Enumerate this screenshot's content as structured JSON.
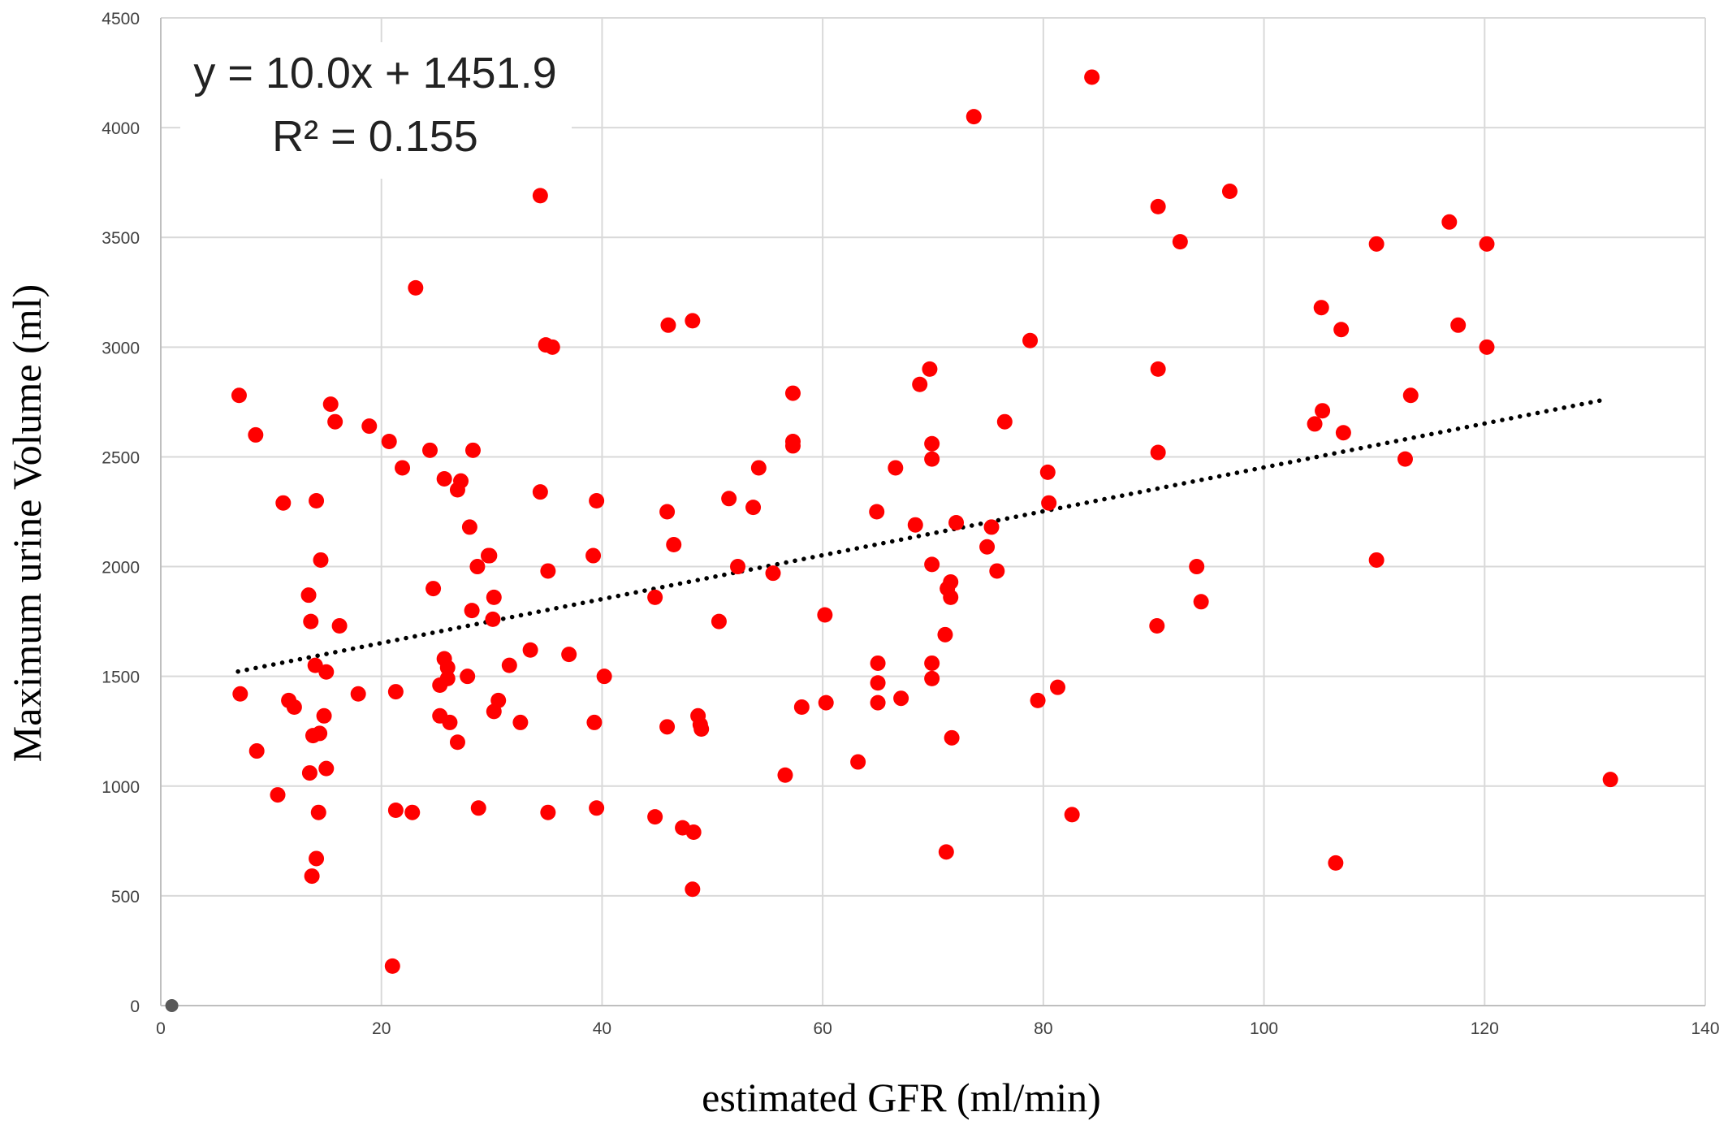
{
  "chart_data": {
    "type": "scatter",
    "xlabel": "estimated GFR (ml/min)",
    "ylabel": "Maximum urine Volume (ml)",
    "xlim": [
      0,
      140
    ],
    "ylim": [
      0,
      4500
    ],
    "x_ticks": [
      0,
      20,
      40,
      60,
      80,
      100,
      120,
      140
    ],
    "y_ticks": [
      0,
      500,
      1000,
      1500,
      2000,
      2500,
      3000,
      3500,
      4000,
      4500
    ],
    "grid": true,
    "equation": "y = 10.0x + 1451.9",
    "r_squared": "R² = 0.155",
    "trendline": {
      "slope": 10.0,
      "intercept": 1451.9,
      "x_range": [
        7,
        131
      ],
      "style": "dotted",
      "color": "#000000"
    },
    "marker_color": "#ff0000",
    "origin_marker": {
      "x": 1,
      "y": 0,
      "color": "#595959"
    },
    "series": [
      {
        "values": [
          [
            7.1,
            2780
          ],
          [
            8.6,
            2600
          ],
          [
            7.2,
            1420
          ],
          [
            8.7,
            1160
          ],
          [
            10.6,
            960
          ],
          [
            11.1,
            2290
          ],
          [
            11.6,
            1390
          ],
          [
            12.1,
            1360
          ],
          [
            13.4,
            1870
          ],
          [
            13.6,
            1750
          ],
          [
            13.5,
            1060
          ],
          [
            13.8,
            1230
          ],
          [
            13.7,
            590
          ],
          [
            14.1,
            2300
          ],
          [
            14.0,
            1550
          ],
          [
            14.1,
            670
          ],
          [
            14.3,
            880
          ],
          [
            14.5,
            2030
          ],
          [
            14.4,
            1240
          ],
          [
            14.8,
            1320
          ],
          [
            15.0,
            1520
          ],
          [
            15.0,
            1080
          ],
          [
            15.4,
            2740
          ],
          [
            15.8,
            2660
          ],
          [
            16.2,
            1730
          ],
          [
            17.9,
            1420
          ],
          [
            18.9,
            2640
          ],
          [
            20.7,
            2570
          ],
          [
            21.0,
            180
          ],
          [
            21.3,
            1430
          ],
          [
            21.3,
            890
          ],
          [
            21.9,
            2450
          ],
          [
            22.8,
            880
          ],
          [
            23.1,
            3270
          ],
          [
            24.4,
            2530
          ],
          [
            24.7,
            1900
          ],
          [
            25.3,
            1460
          ],
          [
            25.3,
            1320
          ],
          [
            25.7,
            2400
          ],
          [
            25.7,
            1580
          ],
          [
            26.0,
            1490
          ],
          [
            26.0,
            1540
          ],
          [
            26.2,
            1290
          ],
          [
            26.9,
            2350
          ],
          [
            26.9,
            1200
          ],
          [
            27.2,
            2390
          ],
          [
            27.8,
            1500
          ],
          [
            28.0,
            2180
          ],
          [
            28.2,
            1800
          ],
          [
            28.3,
            2530
          ],
          [
            28.7,
            2000
          ],
          [
            28.8,
            900
          ],
          [
            29.7,
            2050
          ],
          [
            29.8,
            2050
          ],
          [
            30.2,
            1860
          ],
          [
            30.1,
            1760
          ],
          [
            30.2,
            1340
          ],
          [
            30.6,
            1390
          ],
          [
            31.6,
            1550
          ],
          [
            32.6,
            1290
          ],
          [
            33.5,
            1620
          ],
          [
            34.4,
            3690
          ],
          [
            34.4,
            2340
          ],
          [
            34.9,
            3010
          ],
          [
            35.1,
            1980
          ],
          [
            35.1,
            880
          ],
          [
            35.5,
            3000
          ],
          [
            37.0,
            1600
          ],
          [
            39.2,
            2050
          ],
          [
            39.3,
            1290
          ],
          [
            39.5,
            2300
          ],
          [
            39.5,
            900
          ],
          [
            40.2,
            1500
          ],
          [
            44.8,
            1860
          ],
          [
            44.8,
            860
          ],
          [
            45.9,
            2250
          ],
          [
            45.9,
            1270
          ],
          [
            46.0,
            3100
          ],
          [
            46.5,
            2100
          ],
          [
            47.3,
            810
          ],
          [
            48.2,
            530
          ],
          [
            48.2,
            3120
          ],
          [
            48.3,
            790
          ],
          [
            48.7,
            1320
          ],
          [
            48.9,
            1280
          ],
          [
            49.0,
            1260
          ],
          [
            50.6,
            1750
          ],
          [
            51.5,
            2310
          ],
          [
            52.3,
            2000
          ],
          [
            53.7,
            2270
          ],
          [
            54.2,
            2450
          ],
          [
            55.5,
            1970
          ],
          [
            56.6,
            1050
          ],
          [
            57.3,
            2790
          ],
          [
            57.3,
            2570
          ],
          [
            57.3,
            2550
          ],
          [
            58.1,
            1360
          ],
          [
            60.2,
            1780
          ],
          [
            60.3,
            1380
          ],
          [
            63.2,
            1110
          ],
          [
            64.9,
            2250
          ],
          [
            65.0,
            1560
          ],
          [
            65.0,
            1470
          ],
          [
            65.0,
            1380
          ],
          [
            66.6,
            2450
          ],
          [
            67.1,
            1400
          ],
          [
            68.4,
            2190
          ],
          [
            68.8,
            2830
          ],
          [
            69.7,
            2900
          ],
          [
            69.9,
            2560
          ],
          [
            69.9,
            2490
          ],
          [
            69.9,
            2010
          ],
          [
            69.9,
            1560
          ],
          [
            69.9,
            1490
          ],
          [
            71.1,
            1690
          ],
          [
            71.2,
            700
          ],
          [
            71.3,
            1900
          ],
          [
            71.6,
            1930
          ],
          [
            71.6,
            1860
          ],
          [
            71.7,
            1220
          ],
          [
            72.1,
            2200
          ],
          [
            73.7,
            4050
          ],
          [
            74.9,
            2090
          ],
          [
            75.3,
            2180
          ],
          [
            75.8,
            1980
          ],
          [
            76.5,
            2660
          ],
          [
            78.8,
            3030
          ],
          [
            79.5,
            1390
          ],
          [
            80.4,
            2430
          ],
          [
            80.5,
            2290
          ],
          [
            81.3,
            1450
          ],
          [
            82.6,
            870
          ],
          [
            84.4,
            4230
          ],
          [
            90.3,
            1730
          ],
          [
            90.4,
            3640
          ],
          [
            90.4,
            2900
          ],
          [
            90.4,
            2520
          ],
          [
            92.4,
            3480
          ],
          [
            93.9,
            2000
          ],
          [
            94.3,
            1840
          ],
          [
            96.9,
            3710
          ],
          [
            104.6,
            2650
          ],
          [
            105.2,
            3180
          ],
          [
            105.3,
            2710
          ],
          [
            106.5,
            650
          ],
          [
            107.0,
            3080
          ],
          [
            107.2,
            2610
          ],
          [
            110.2,
            3470
          ],
          [
            110.2,
            2030
          ],
          [
            112.8,
            2490
          ],
          [
            113.3,
            2780
          ],
          [
            116.8,
            3570
          ],
          [
            117.6,
            3100
          ],
          [
            120.2,
            3470
          ],
          [
            120.2,
            3000
          ],
          [
            131.4,
            1030
          ]
        ]
      }
    ]
  }
}
